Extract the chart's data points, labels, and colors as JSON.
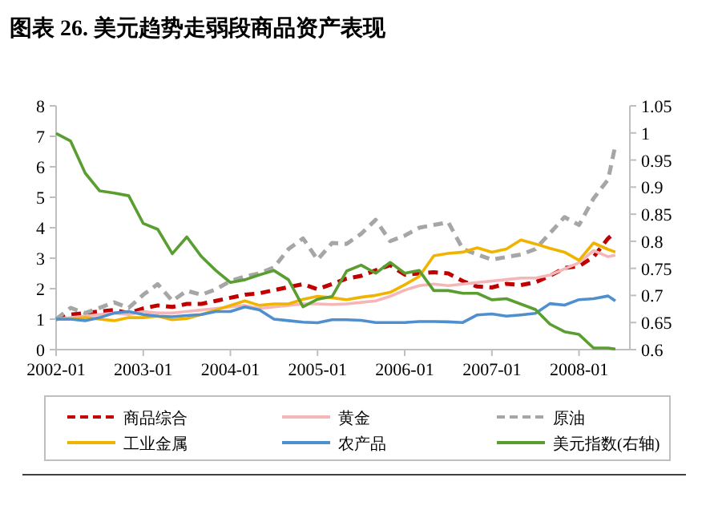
{
  "chart_data": {
    "type": "line",
    "title": "图表 26. 美元趋势走弱段商品资产表现",
    "x": [
      "2002-01",
      "2002-03",
      "2002-05",
      "2002-07",
      "2002-09",
      "2002-11",
      "2003-01",
      "2003-03",
      "2003-05",
      "2003-07",
      "2003-09",
      "2003-11",
      "2004-01",
      "2004-03",
      "2004-05",
      "2004-07",
      "2004-09",
      "2004-11",
      "2005-01",
      "2005-03",
      "2005-05",
      "2005-07",
      "2005-09",
      "2005-11",
      "2006-01",
      "2006-03",
      "2006-05",
      "2006-07",
      "2006-09",
      "2006-11",
      "2007-01",
      "2007-03",
      "2007-05",
      "2007-07",
      "2007-09",
      "2007-11",
      "2008-01",
      "2008-03",
      "2008-05",
      "2008-06"
    ],
    "series": [
      {
        "name": "商品综合",
        "color": "#c00000",
        "line_style": "dashed",
        "values": [
          1.0,
          1.15,
          1.2,
          1.25,
          1.3,
          1.2,
          1.35,
          1.45,
          1.4,
          1.5,
          1.5,
          1.6,
          1.7,
          1.8,
          1.85,
          1.95,
          2.05,
          2.15,
          1.98,
          2.15,
          2.33,
          2.42,
          2.6,
          2.77,
          2.46,
          2.5,
          2.54,
          2.5,
          2.25,
          2.07,
          2.04,
          2.16,
          2.12,
          2.21,
          2.42,
          2.68,
          2.74,
          3.04,
          3.65,
          3.86
        ]
      },
      {
        "name": "黄金",
        "color": "#f4b6b6",
        "line_style": "solid",
        "values": [
          1.0,
          1.05,
          1.1,
          1.15,
          1.2,
          1.15,
          1.25,
          1.2,
          1.2,
          1.25,
          1.3,
          1.35,
          1.4,
          1.45,
          1.35,
          1.4,
          1.45,
          1.5,
          1.5,
          1.48,
          1.5,
          1.55,
          1.6,
          1.75,
          1.95,
          2.1,
          2.15,
          2.1,
          2.15,
          2.2,
          2.25,
          2.3,
          2.35,
          2.35,
          2.45,
          2.65,
          2.85,
          3.25,
          3.05,
          3.1
        ]
      },
      {
        "name": "原油",
        "color": "#a6a6a6",
        "line_style": "dashed",
        "values": [
          1.0,
          1.37,
          1.2,
          1.37,
          1.55,
          1.37,
          1.8,
          2.15,
          1.6,
          1.93,
          1.8,
          1.98,
          2.25,
          2.4,
          2.5,
          2.7,
          3.3,
          3.65,
          2.95,
          3.5,
          3.47,
          3.8,
          4.26,
          3.56,
          3.74,
          4.0,
          4.09,
          4.18,
          3.3,
          3.12,
          2.95,
          3.04,
          3.12,
          3.3,
          3.82,
          4.35,
          4.09,
          4.96,
          5.58,
          6.7
        ]
      },
      {
        "name": "工业金属",
        "color": "#f0b400",
        "line_style": "solid",
        "values": [
          1.0,
          1.0,
          1.05,
          1.0,
          0.95,
          1.05,
          1.05,
          1.1,
          0.98,
          1.02,
          1.15,
          1.3,
          1.45,
          1.6,
          1.45,
          1.5,
          1.5,
          1.65,
          1.75,
          1.7,
          1.64,
          1.72,
          1.78,
          1.88,
          2.13,
          2.4,
          3.08,
          3.16,
          3.2,
          3.34,
          3.2,
          3.3,
          3.6,
          3.47,
          3.32,
          3.2,
          2.93,
          3.5,
          3.29,
          3.2
        ]
      },
      {
        "name": "农产品",
        "color": "#4f8fcd",
        "line_style": "solid",
        "values": [
          1.0,
          1.0,
          0.95,
          1.05,
          1.2,
          1.25,
          1.15,
          1.1,
          1.08,
          1.12,
          1.15,
          1.25,
          1.25,
          1.4,
          1.3,
          1.0,
          0.95,
          0.9,
          0.88,
          0.98,
          0.98,
          0.96,
          0.89,
          0.89,
          0.89,
          0.92,
          0.92,
          0.91,
          0.89,
          1.14,
          1.17,
          1.1,
          1.14,
          1.19,
          1.51,
          1.46,
          1.64,
          1.67,
          1.76,
          1.6
        ]
      },
      {
        "name": "美元指数(右轴)",
        "color": "#5a9e32",
        "line_style": "solid",
        "axis": "y2",
        "values": [
          0.999,
          0.985,
          0.926,
          0.893,
          0.889,
          0.884,
          0.833,
          0.822,
          0.777,
          0.808,
          0.772,
          0.746,
          0.724,
          0.729,
          0.738,
          0.746,
          0.729,
          0.679,
          0.693,
          0.698,
          0.745,
          0.756,
          0.741,
          0.761,
          0.741,
          0.746,
          0.709,
          0.709,
          0.704,
          0.704,
          0.692,
          0.694,
          0.684,
          0.674,
          0.647,
          0.633,
          0.628,
          0.603,
          0.603,
          0.601
        ]
      }
    ],
    "xlim": [
      "2002-01",
      "2008-08"
    ],
    "xticks": [
      {
        "value": "2002-01",
        "label": "2002-01"
      },
      {
        "value": "2003-01",
        "label": "2003-01"
      },
      {
        "value": "2004-01",
        "label": "2004-01"
      },
      {
        "value": "2005-01",
        "label": "2005-01"
      },
      {
        "value": "2006-01",
        "label": "2006-01"
      },
      {
        "value": "2007-01",
        "label": "2007-01"
      },
      {
        "value": "2008-01",
        "label": "2008-01"
      }
    ],
    "ylim": [
      0,
      8
    ],
    "yticks": [
      0,
      1,
      2,
      3,
      4,
      5,
      6,
      7,
      8
    ],
    "y2lim": [
      0.6,
      1.05
    ],
    "y2ticks": [
      0.6,
      0.65,
      0.7,
      0.75,
      0.8,
      0.85,
      0.9,
      0.95,
      1,
      1.05
    ],
    "grid": false,
    "legend": "bottom"
  }
}
